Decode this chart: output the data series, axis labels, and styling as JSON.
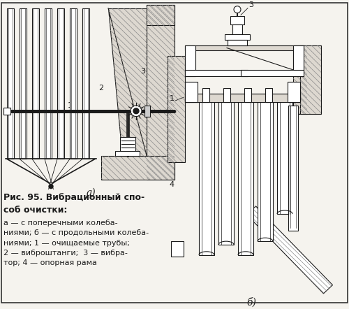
{
  "background_color": "#f5f3ee",
  "border_color": "#333333",
  "fig_width": 5.0,
  "fig_height": 4.42,
  "dpi": 100,
  "caption_title": "Рис. 95. Вибрационный спо-\nсоб очистки:",
  "caption_body": "а — с поперечными колеба-\nниями; б — с продольными колеба-\nниями; 1 — очищаемые трубы;\n2 — виброштанги;  3 — вибра-\nтор; 4 — опорная рама",
  "label_a": "а)",
  "label_b": "б)"
}
